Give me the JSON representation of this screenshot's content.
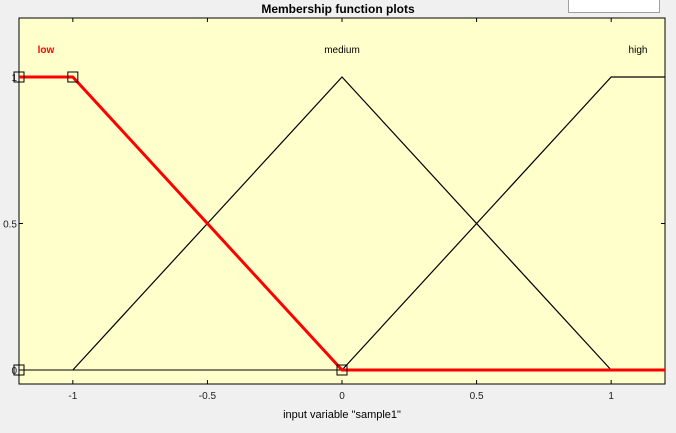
{
  "window": {
    "title": "Membership function plots",
    "range_field_value": ""
  },
  "colors": {
    "plot_background": "#ffffcc",
    "selected_mf": "#ff0000",
    "unselected_mf": "#000000"
  },
  "chart_data": {
    "type": "line",
    "title": "Membership function plots",
    "xlabel": "input variable \"sample1\"",
    "ylabel": "",
    "xlim": [
      -1.2,
      1.2
    ],
    "ylim": [
      0,
      1
    ],
    "xticks": [
      -1,
      -0.5,
      0,
      0.5,
      1
    ],
    "xtick_labels": [
      "-1",
      "-0.5",
      "0",
      "0.5",
      "1"
    ],
    "yticks": [
      0,
      0.5,
      1
    ],
    "ytick_labels": [
      "0",
      "0.5",
      "1"
    ],
    "grid": false,
    "series": [
      {
        "name": "low",
        "selected": true,
        "x": [
          -1.2,
          -1,
          0,
          1.2
        ],
        "y": [
          1,
          1,
          0,
          0
        ],
        "handles": [
          [
            -1.2,
            1
          ],
          [
            -1,
            1
          ],
          [
            0,
            0
          ],
          [
            -1.2,
            0
          ]
        ]
      },
      {
        "name": "medium",
        "selected": false,
        "x": [
          -1,
          0,
          1
        ],
        "y": [
          0,
          1,
          0
        ],
        "handles": []
      },
      {
        "name": "high",
        "selected": false,
        "x": [
          0,
          1,
          1.2
        ],
        "y": [
          0,
          1,
          1
        ],
        "handles": []
      }
    ],
    "baseline": {
      "x": [
        -1.2,
        1.2
      ],
      "y": [
        0,
        0
      ]
    }
  }
}
